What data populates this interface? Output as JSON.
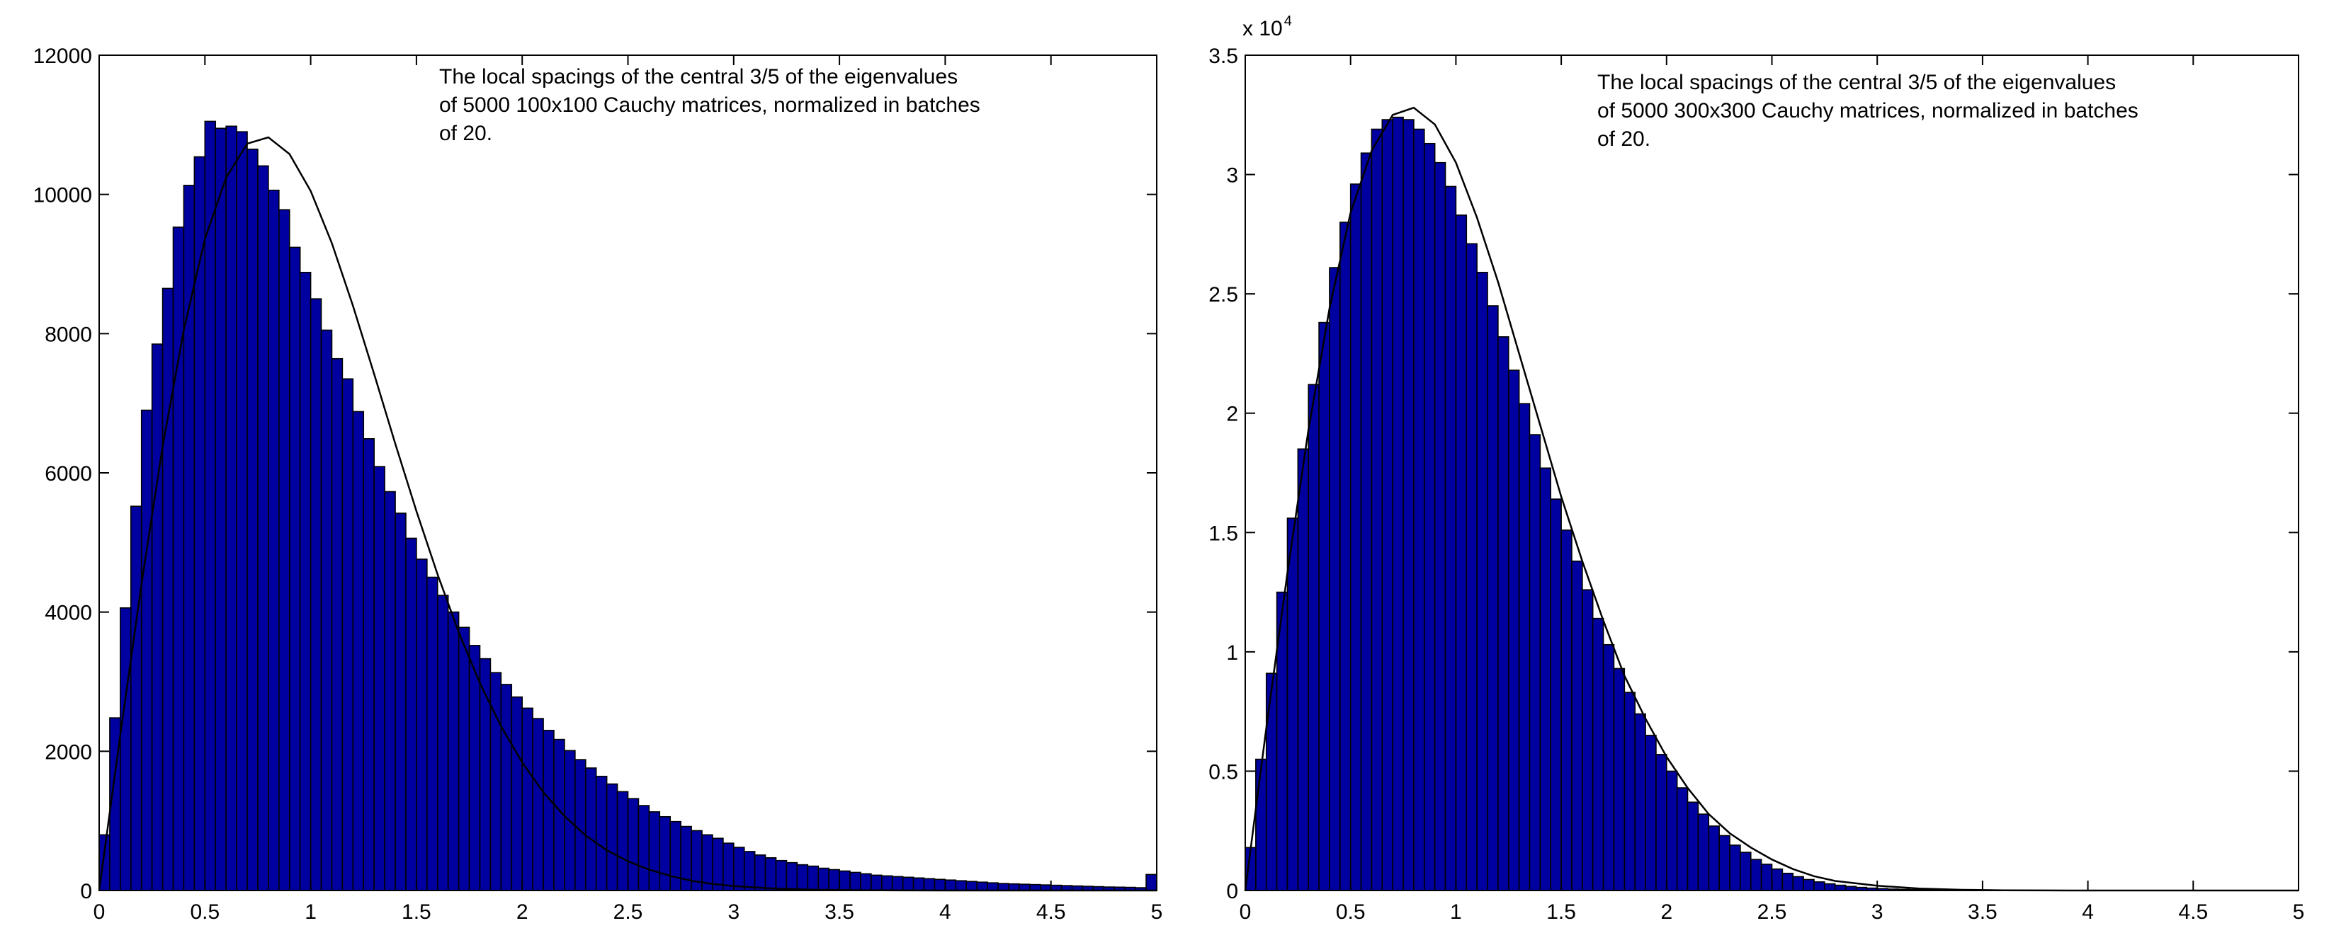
{
  "chart_data": [
    {
      "type": "bar",
      "annotation": [
        "The local spacings of the central 3/5 of the eigenvalues",
        "of 5000 100x100 Cauchy matrices, normalized in batches",
        "of 20."
      ],
      "xlim": [
        0,
        5
      ],
      "ylim": [
        0,
        12000
      ],
      "xticks": [
        "0",
        "0.5",
        "1",
        "1.5",
        "2",
        "2.5",
        "3",
        "3.5",
        "4",
        "4.5",
        "5"
      ],
      "yticks": [
        "0",
        "2000",
        "4000",
        "6000",
        "8000",
        "10000",
        "12000"
      ],
      "y_exponent_label": "",
      "bin_width": 0.05,
      "bin_start": 0,
      "bar_color": "#0000a0",
      "curve_color": "#000000",
      "values": [
        800,
        2480,
        4060,
        5520,
        6900,
        7850,
        8650,
        9530,
        10130,
        10540,
        11050,
        10950,
        10980,
        10900,
        10650,
        10410,
        10060,
        9780,
        9240,
        8880,
        8500,
        8050,
        7640,
        7350,
        6880,
        6490,
        6090,
        5730,
        5420,
        5060,
        4760,
        4500,
        4240,
        4000,
        3780,
        3520,
        3330,
        3130,
        2960,
        2780,
        2620,
        2470,
        2300,
        2170,
        2010,
        1880,
        1760,
        1640,
        1530,
        1420,
        1320,
        1220,
        1130,
        1060,
        990,
        920,
        860,
        800,
        750,
        680,
        620,
        560,
        510,
        470,
        430,
        400,
        370,
        350,
        320,
        300,
        280,
        260,
        240,
        220,
        210,
        200,
        190,
        180,
        170,
        160,
        150,
        140,
        130,
        120,
        110,
        100,
        95,
        90,
        85,
        80,
        75,
        70,
        65,
        60,
        55,
        50,
        48,
        45,
        40,
        230
      ],
      "curve": {
        "x": [
          0,
          0.1,
          0.2,
          0.3,
          0.4,
          0.5,
          0.6,
          0.7,
          0.8,
          0.9,
          1.0,
          1.1,
          1.2,
          1.3,
          1.4,
          1.5,
          1.6,
          1.7,
          1.8,
          1.9,
          2.0,
          2.1,
          2.2,
          2.3,
          2.4,
          2.5,
          2.6,
          2.7,
          2.8,
          2.9,
          3.0,
          3.2,
          3.4,
          3.6,
          3.8,
          4.0,
          4.5,
          5.0
        ],
        "y": [
          0,
          2240,
          4400,
          6380,
          8050,
          9360,
          10240,
          10730,
          10820,
          10580,
          10050,
          9300,
          8400,
          7420,
          6420,
          5450,
          4540,
          3710,
          2980,
          2360,
          1840,
          1410,
          1070,
          790,
          580,
          420,
          300,
          210,
          140,
          95,
          63,
          26,
          10,
          4,
          1,
          0,
          0,
          0
        ]
      }
    },
    {
      "type": "bar",
      "annotation": [
        "The local spacings of the central 3/5 of the eigenvalues",
        "of 5000 300x300 Cauchy matrices, normalized in batches",
        "of 20."
      ],
      "xlim": [
        0,
        5
      ],
      "ylim": [
        0,
        3.5
      ],
      "xticks": [
        "0",
        "0.5",
        "1",
        "1.5",
        "2",
        "2.5",
        "3",
        "3.5",
        "4",
        "4.5",
        "5"
      ],
      "yticks": [
        "0",
        "0.5",
        "1",
        "1.5",
        "2",
        "2.5",
        "3",
        "3.5"
      ],
      "y_exponent_label": {
        "base": "x 10",
        "exp": "4"
      },
      "bin_width": 0.05,
      "bin_start": 0,
      "bar_color": "#0000a0",
      "curve_color": "#000000",
      "values": [
        0.18,
        0.55,
        0.91,
        1.25,
        1.56,
        1.85,
        2.12,
        2.38,
        2.61,
        2.8,
        2.96,
        3.09,
        3.19,
        3.23,
        3.24,
        3.23,
        3.19,
        3.13,
        3.05,
        2.95,
        2.83,
        2.71,
        2.59,
        2.45,
        2.32,
        2.18,
        2.04,
        1.91,
        1.77,
        1.64,
        1.51,
        1.38,
        1.26,
        1.14,
        1.03,
        0.93,
        0.83,
        0.74,
        0.65,
        0.57,
        0.5,
        0.43,
        0.37,
        0.32,
        0.27,
        0.23,
        0.19,
        0.16,
        0.13,
        0.11,
        0.09,
        0.072,
        0.058,
        0.046,
        0.036,
        0.028,
        0.022,
        0.017,
        0.013,
        0.01,
        0.008,
        0.006,
        0.005,
        0.004,
        0.003,
        0.002,
        0.002,
        0.0015,
        0.001,
        0.001,
        0.0008,
        0.0006,
        0.0005,
        0.0004,
        0.0003,
        0.0002,
        0.0002,
        0.0001,
        0.0001,
        0.0001,
        0.0001,
        0.0001,
        0.0001,
        0.0001,
        0.0001,
        0.0001,
        0.0001,
        0.0001,
        0,
        0,
        0,
        0,
        0,
        0,
        0,
        0,
        0,
        0,
        0,
        0
      ],
      "curve": {
        "x": [
          0,
          0.1,
          0.2,
          0.3,
          0.4,
          0.5,
          0.6,
          0.7,
          0.8,
          0.9,
          1.0,
          1.1,
          1.2,
          1.3,
          1.4,
          1.5,
          1.6,
          1.7,
          1.8,
          1.9,
          2.0,
          2.1,
          2.2,
          2.3,
          2.4,
          2.5,
          2.6,
          2.7,
          2.8,
          2.9,
          3.0,
          3.2,
          3.4,
          3.6,
          3.8,
          4.0,
          4.5,
          5.0
        ],
        "y": [
          0,
          0.68,
          1.33,
          1.93,
          2.44,
          2.84,
          3.1,
          3.25,
          3.28,
          3.21,
          3.05,
          2.82,
          2.55,
          2.25,
          1.95,
          1.65,
          1.38,
          1.13,
          0.9,
          0.72,
          0.56,
          0.43,
          0.32,
          0.24,
          0.18,
          0.13,
          0.09,
          0.06,
          0.04,
          0.03,
          0.02,
          0.008,
          0.003,
          0.001,
          0.0004,
          0.0001,
          0,
          0
        ]
      }
    }
  ]
}
